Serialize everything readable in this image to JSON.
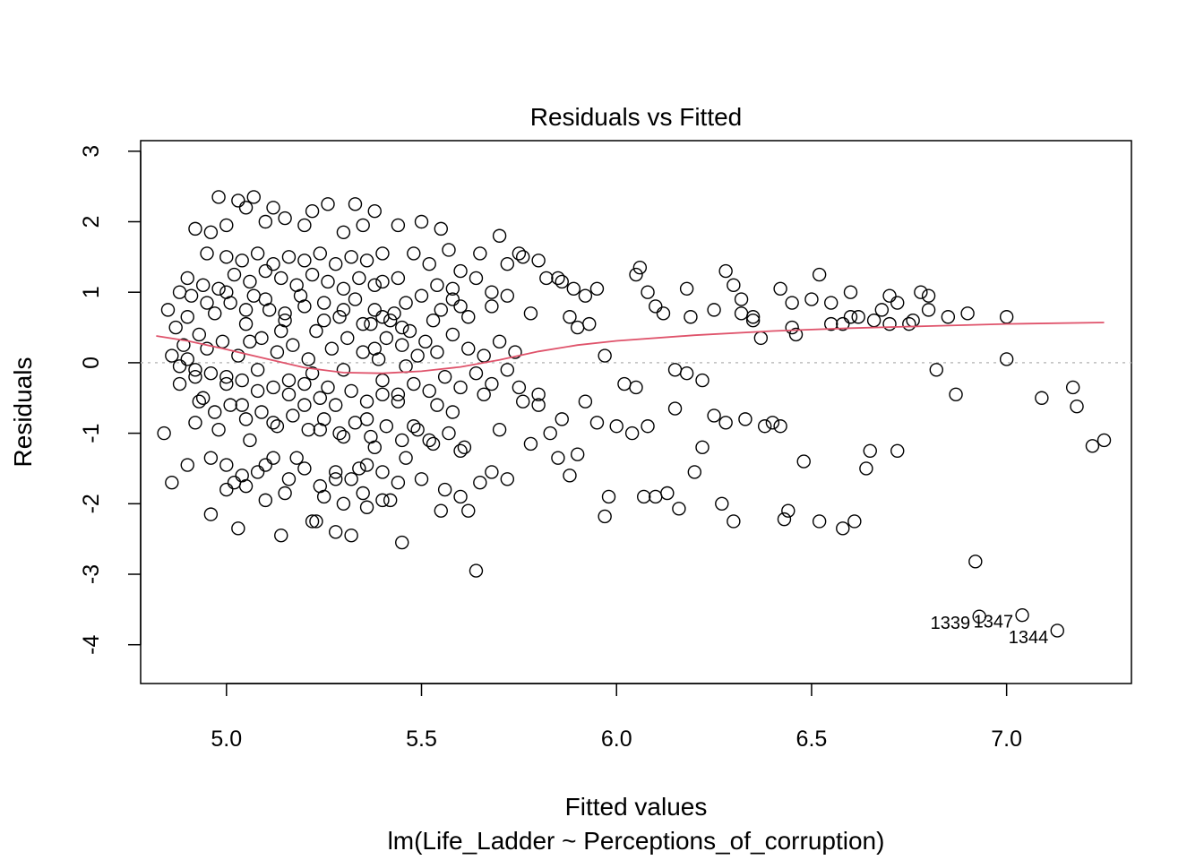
{
  "chart_data": {
    "type": "scatter",
    "title": "Residuals vs Fitted",
    "xlabel": "Fitted values",
    "ylabel": "Residuals",
    "subtitle": "lm(Life_Ladder ~ Perceptions_of_corruption)",
    "xlim": [
      4.78,
      7.32
    ],
    "ylim": [
      -4.55,
      3.15
    ],
    "x_ticks": [
      5.0,
      5.5,
      6.0,
      6.5,
      7.0
    ],
    "x_tick_labels": [
      "5.0",
      "5.5",
      "6.0",
      "6.5",
      "7.0"
    ],
    "y_ticks": [
      3,
      2,
      1,
      0,
      -1,
      -2,
      -3,
      -4
    ],
    "y_tick_labels": [
      "3",
      "2",
      "1",
      "0",
      "-1",
      "-2",
      "-3",
      "-4"
    ],
    "reference_line": {
      "y": 0,
      "style": "dotted",
      "color": "#bebebe"
    },
    "smoother": {
      "color": "#df536b",
      "x": [
        4.82,
        4.9,
        5.0,
        5.1,
        5.2,
        5.3,
        5.4,
        5.5,
        5.6,
        5.7,
        5.8,
        5.9,
        6.0,
        6.2,
        6.4,
        6.6,
        6.8,
        7.0,
        7.25
      ],
      "y": [
        0.38,
        0.31,
        0.19,
        0.06,
        -0.07,
        -0.14,
        -0.15,
        -0.12,
        -0.06,
        0.04,
        0.16,
        0.25,
        0.31,
        0.39,
        0.45,
        0.49,
        0.52,
        0.55,
        0.57
      ]
    },
    "labeled_points": [
      {
        "label": "1339",
        "x": 6.93,
        "y": -3.6
      },
      {
        "label": "1347",
        "x": 7.04,
        "y": -3.58
      },
      {
        "label": "1344",
        "x": 7.13,
        "y": -3.8
      }
    ],
    "points": [
      [
        6.04,
        -1.0
      ],
      [
        6.06,
        1.35
      ],
      [
        6.08,
        1.0
      ],
      [
        6.12,
        0.7
      ],
      [
        6.15,
        -0.1
      ],
      [
        6.18,
        1.05
      ],
      [
        6.22,
        -0.25
      ],
      [
        6.25,
        0.75
      ],
      [
        6.28,
        1.3
      ],
      [
        6.3,
        1.1
      ],
      [
        6.32,
        0.9
      ],
      [
        6.35,
        0.6
      ],
      [
        6.38,
        -0.9
      ],
      [
        6.42,
        1.05
      ],
      [
        6.45,
        0.5
      ],
      [
        6.48,
        -1.4
      ],
      [
        6.5,
        0.9
      ],
      [
        6.52,
        1.25
      ],
      [
        6.55,
        0.85
      ],
      [
        6.58,
        0.55
      ],
      [
        6.6,
        1.0
      ],
      [
        6.62,
        0.65
      ],
      [
        6.65,
        -1.25
      ],
      [
        6.68,
        0.75
      ],
      [
        6.7,
        0.95
      ],
      [
        6.72,
        -1.25
      ],
      [
        6.75,
        0.55
      ],
      [
        6.78,
        1.0
      ],
      [
        6.8,
        0.75
      ],
      [
        6.82,
        -0.1
      ],
      [
        6.85,
        0.65
      ],
      [
        6.87,
        -0.45
      ],
      [
        6.9,
        0.7
      ],
      [
        6.92,
        -2.82
      ],
      [
        7.0,
        0.65
      ],
      [
        7.0,
        0.05
      ],
      [
        7.09,
        -0.5
      ],
      [
        7.17,
        -0.35
      ],
      [
        7.18,
        -0.62
      ],
      [
        7.22,
        -1.18
      ],
      [
        7.25,
        -1.1
      ],
      [
        6.0,
        -0.9
      ],
      [
        5.98,
        -1.9
      ],
      [
        5.97,
        -2.18
      ],
      [
        6.02,
        -0.3
      ],
      [
        6.05,
        -0.35
      ],
      [
        6.07,
        -1.9
      ],
      [
        6.1,
        -1.9
      ],
      [
        6.13,
        -1.85
      ],
      [
        6.16,
        -2.07
      ],
      [
        6.2,
        -1.55
      ],
      [
        6.22,
        -1.2
      ],
      [
        6.27,
        -2.0
      ],
      [
        6.3,
        -2.25
      ],
      [
        6.33,
        -0.8
      ],
      [
        6.4,
        -0.85
      ],
      [
        6.43,
        -2.22
      ],
      [
        6.44,
        -2.1
      ],
      [
        6.52,
        -2.25
      ],
      [
        6.58,
        -2.35
      ],
      [
        6.61,
        -2.25
      ],
      [
        6.64,
        -1.5
      ],
      [
        6.42,
        -0.9
      ],
      [
        6.28,
        -0.85
      ],
      [
        6.25,
        -0.75
      ],
      [
        6.15,
        -0.65
      ],
      [
        6.08,
        -0.9
      ],
      [
        6.19,
        0.65
      ],
      [
        6.32,
        0.7
      ],
      [
        6.37,
        0.35
      ],
      [
        6.46,
        0.4
      ],
      [
        6.55,
        0.55
      ],
      [
        6.66,
        0.6
      ],
      [
        6.7,
        0.55
      ],
      [
        6.76,
        0.6
      ],
      [
        5.95,
        1.05
      ],
      [
        5.93,
        0.55
      ],
      [
        5.9,
        0.5
      ],
      [
        5.88,
        0.65
      ],
      [
        5.85,
        1.2
      ],
      [
        5.82,
        1.2
      ],
      [
        5.78,
        0.7
      ],
      [
        5.75,
        1.55
      ],
      [
        5.72,
        1.4
      ],
      [
        5.7,
        1.8
      ],
      [
        5.68,
        0.8
      ],
      [
        5.65,
        1.55
      ],
      [
        5.62,
        0.65
      ],
      [
        5.6,
        1.3
      ],
      [
        5.58,
        0.9
      ],
      [
        5.57,
        1.6
      ],
      [
        5.55,
        0.75
      ],
      [
        5.52,
        1.4
      ],
      [
        5.5,
        0.95
      ],
      [
        5.48,
        1.55
      ],
      [
        5.46,
        0.85
      ],
      [
        5.44,
        1.2
      ],
      [
        5.42,
        0.6
      ],
      [
        5.4,
        1.15
      ],
      [
        5.38,
        0.75
      ],
      [
        5.95,
        -0.85
      ],
      [
        5.92,
        -0.55
      ],
      [
        5.9,
        -1.3
      ],
      [
        5.88,
        -1.6
      ],
      [
        5.85,
        -1.35
      ],
      [
        5.83,
        -1.0
      ],
      [
        5.8,
        -0.6
      ],
      [
        5.78,
        -1.15
      ],
      [
        5.75,
        -0.35
      ],
      [
        5.72,
        -1.65
      ],
      [
        5.7,
        -0.95
      ],
      [
        5.68,
        -1.55
      ],
      [
        5.66,
        -0.45
      ],
      [
        5.64,
        -2.95
      ],
      [
        5.62,
        -2.1
      ],
      [
        5.6,
        -1.25
      ],
      [
        5.58,
        -0.7
      ],
      [
        5.56,
        -1.8
      ],
      [
        5.54,
        -0.6
      ],
      [
        5.52,
        -1.1
      ],
      [
        5.5,
        -1.65
      ],
      [
        5.48,
        -0.9
      ],
      [
        5.46,
        -1.35
      ],
      [
        5.44,
        -0.55
      ],
      [
        5.42,
        -1.95
      ],
      [
        5.45,
        -2.55
      ],
      [
        5.4,
        -0.45
      ],
      [
        5.38,
        -1.2
      ],
      [
        5.36,
        -0.8
      ],
      [
        5.34,
        -1.5
      ],
      [
        5.32,
        -2.45
      ],
      [
        5.3,
        -1.05
      ],
      [
        5.28,
        -1.65
      ],
      [
        5.26,
        -0.35
      ],
      [
        5.24,
        -0.95
      ],
      [
        5.22,
        -2.25
      ],
      [
        5.2,
        -0.6
      ],
      [
        5.18,
        -1.35
      ],
      [
        5.16,
        -0.25
      ],
      [
        5.14,
        -2.45
      ],
      [
        5.12,
        -0.85
      ],
      [
        5.1,
        -1.45
      ],
      [
        5.08,
        -0.4
      ],
      [
        5.06,
        -1.1
      ],
      [
        5.04,
        -0.6
      ],
      [
        5.02,
        -1.7
      ],
      [
        5.0,
        -0.2
      ],
      [
        4.98,
        -0.95
      ],
      [
        4.96,
        -1.35
      ],
      [
        4.94,
        -0.5
      ],
      [
        4.92,
        -0.85
      ],
      [
        4.9,
        -1.45
      ],
      [
        4.88,
        -0.3
      ],
      [
        4.86,
        -1.7
      ],
      [
        4.84,
        -1.0
      ],
      [
        4.85,
        0.75
      ],
      [
        4.87,
        0.5
      ],
      [
        4.89,
        0.25
      ],
      [
        4.91,
        0.95
      ],
      [
        4.93,
        0.4
      ],
      [
        4.95,
        0.2
      ],
      [
        4.97,
        0.7
      ],
      [
        4.99,
        0.3
      ],
      [
        5.01,
        0.85
      ],
      [
        5.03,
        0.1
      ],
      [
        5.05,
        0.55
      ],
      [
        5.07,
        0.95
      ],
      [
        5.09,
        0.35
      ],
      [
        5.11,
        0.75
      ],
      [
        5.13,
        0.15
      ],
      [
        5.15,
        0.6
      ],
      [
        5.17,
        0.25
      ],
      [
        5.19,
        0.95
      ],
      [
        5.21,
        0.05
      ],
      [
        5.23,
        0.45
      ],
      [
        5.25,
        0.85
      ],
      [
        5.27,
        0.2
      ],
      [
        5.29,
        0.65
      ],
      [
        5.31,
        0.35
      ],
      [
        5.33,
        0.9
      ],
      [
        5.35,
        0.15
      ],
      [
        5.37,
        0.55
      ],
      [
        5.39,
        0.05
      ],
      [
        5.41,
        0.35
      ],
      [
        5.43,
        0.7
      ],
      [
        5.45,
        0.25
      ],
      [
        5.47,
        0.45
      ],
      [
        5.49,
        0.1
      ],
      [
        5.51,
        0.3
      ],
      [
        5.53,
        0.6
      ],
      [
        4.98,
        2.35
      ],
      [
        5.03,
        2.3
      ],
      [
        5.07,
        2.35
      ],
      [
        5.05,
        2.2
      ],
      [
        5.12,
        2.2
      ],
      [
        5.22,
        2.15
      ],
      [
        5.26,
        2.25
      ],
      [
        5.33,
        2.25
      ],
      [
        5.38,
        2.15
      ],
      [
        5.5,
        2.0
      ],
      [
        5.55,
        1.9
      ],
      [
        5.44,
        1.95
      ],
      [
        5.35,
        1.95
      ],
      [
        5.3,
        1.85
      ],
      [
        5.2,
        1.95
      ],
      [
        5.15,
        2.05
      ],
      [
        5.1,
        2.0
      ],
      [
        5.0,
        1.95
      ],
      [
        4.96,
        1.85
      ],
      [
        4.92,
        1.9
      ],
      [
        4.95,
        1.55
      ],
      [
        5.0,
        1.5
      ],
      [
        5.04,
        1.45
      ],
      [
        5.08,
        1.55
      ],
      [
        5.12,
        1.4
      ],
      [
        5.16,
        1.5
      ],
      [
        5.2,
        1.45
      ],
      [
        5.24,
        1.55
      ],
      [
        5.28,
        1.4
      ],
      [
        5.32,
        1.5
      ],
      [
        5.36,
        1.45
      ],
      [
        5.4,
        1.55
      ],
      [
        5.02,
        1.25
      ],
      [
        5.06,
        1.15
      ],
      [
        5.1,
        1.3
      ],
      [
        5.14,
        1.2
      ],
      [
        5.18,
        1.1
      ],
      [
        5.22,
        1.25
      ],
      [
        5.26,
        1.15
      ],
      [
        5.3,
        1.05
      ],
      [
        5.34,
        1.2
      ],
      [
        5.38,
        1.1
      ],
      [
        4.9,
        1.2
      ],
      [
        4.94,
        1.1
      ],
      [
        4.88,
        1.0
      ],
      [
        4.98,
        1.05
      ],
      [
        5.0,
        -1.45
      ],
      [
        5.04,
        -1.6
      ],
      [
        5.08,
        -1.55
      ],
      [
        5.12,
        -1.35
      ],
      [
        5.16,
        -1.65
      ],
      [
        5.2,
        -1.5
      ],
      [
        5.24,
        -1.75
      ],
      [
        5.28,
        -1.55
      ],
      [
        5.32,
        -1.65
      ],
      [
        5.36,
        -1.45
      ],
      [
        5.4,
        -1.55
      ],
      [
        5.44,
        -1.7
      ],
      [
        5.0,
        -1.8
      ],
      [
        5.05,
        -1.75
      ],
      [
        5.1,
        -1.95
      ],
      [
        5.15,
        -1.85
      ],
      [
        5.25,
        -1.9
      ],
      [
        5.3,
        -2.0
      ],
      [
        5.35,
        -1.85
      ],
      [
        5.4,
        -1.95
      ],
      [
        4.96,
        -2.15
      ],
      [
        5.03,
        -2.35
      ],
      [
        5.23,
        -2.25
      ],
      [
        5.28,
        -2.4
      ],
      [
        5.36,
        -2.05
      ],
      [
        5.55,
        -2.1
      ],
      [
        5.6,
        -1.9
      ],
      [
        5.65,
        -1.7
      ],
      [
        4.92,
        -0.1
      ],
      [
        4.96,
        -0.15
      ],
      [
        5.0,
        -0.3
      ],
      [
        5.04,
        -0.25
      ],
      [
        5.08,
        -0.1
      ],
      [
        5.12,
        -0.35
      ],
      [
        5.16,
        -0.45
      ],
      [
        5.2,
        -0.3
      ],
      [
        5.24,
        -0.5
      ],
      [
        5.28,
        -0.6
      ],
      [
        5.32,
        -0.4
      ],
      [
        5.36,
        -0.55
      ],
      [
        5.4,
        -0.25
      ],
      [
        5.44,
        -0.45
      ],
      [
        5.48,
        -0.3
      ],
      [
        5.52,
        -0.4
      ],
      [
        5.56,
        -0.2
      ],
      [
        5.6,
        -0.35
      ],
      [
        5.64,
        -0.15
      ],
      [
        5.68,
        -0.3
      ],
      [
        5.72,
        -0.1
      ],
      [
        5.76,
        -0.55
      ],
      [
        5.8,
        -0.45
      ],
      [
        5.86,
        -0.8
      ],
      [
        5.62,
        0.2
      ],
      [
        5.66,
        0.1
      ],
      [
        5.7,
        0.3
      ],
      [
        5.74,
        0.15
      ],
      [
        5.58,
        0.4
      ],
      [
        5.54,
        0.15
      ],
      [
        4.9,
        0.65
      ],
      [
        4.95,
        0.85
      ],
      [
        5.0,
        1.0
      ],
      [
        5.05,
        0.75
      ],
      [
        5.1,
        0.9
      ],
      [
        5.15,
        0.7
      ],
      [
        5.2,
        0.8
      ],
      [
        5.25,
        0.6
      ],
      [
        5.3,
        0.75
      ],
      [
        5.35,
        0.55
      ],
      [
        5.4,
        0.65
      ],
      [
        5.45,
        0.5
      ],
      [
        4.93,
        -0.55
      ],
      [
        4.97,
        -0.7
      ],
      [
        5.01,
        -0.6
      ],
      [
        5.05,
        -0.8
      ],
      [
        5.09,
        -0.7
      ],
      [
        5.13,
        -0.9
      ],
      [
        5.17,
        -0.75
      ],
      [
        5.21,
        -0.95
      ],
      [
        5.25,
        -0.8
      ],
      [
        5.29,
        -1.0
      ],
      [
        5.33,
        -0.85
      ],
      [
        5.37,
        -1.05
      ],
      [
        5.41,
        -0.9
      ],
      [
        5.45,
        -1.1
      ],
      [
        5.49,
        -0.95
      ],
      [
        5.53,
        -1.15
      ],
      [
        5.57,
        -1.0
      ],
      [
        5.61,
        -1.2
      ],
      [
        4.86,
        0.1
      ],
      [
        4.88,
        -0.05
      ],
      [
        4.9,
        0.05
      ],
      [
        4.92,
        -0.2
      ],
      [
        5.06,
        0.3
      ],
      [
        5.14,
        0.45
      ],
      [
        5.22,
        -0.15
      ],
      [
        5.3,
        -0.1
      ],
      [
        5.38,
        0.2
      ],
      [
        5.46,
        -0.05
      ],
      [
        5.54,
        1.1
      ],
      [
        5.58,
        1.05
      ],
      [
        5.6,
        0.8
      ],
      [
        5.64,
        1.2
      ],
      [
        5.68,
        1.0
      ],
      [
        5.72,
        0.95
      ],
      [
        5.76,
        1.5
      ],
      [
        5.8,
        1.45
      ],
      [
        5.86,
        1.15
      ],
      [
        5.89,
        1.05
      ],
      [
        5.92,
        0.95
      ],
      [
        5.97,
        0.1
      ],
      [
        6.05,
        1.25
      ],
      [
        6.1,
        0.8
      ],
      [
        6.18,
        -0.15
      ],
      [
        6.35,
        0.65
      ],
      [
        6.45,
        0.85
      ],
      [
        6.6,
        0.65
      ],
      [
        6.72,
        0.85
      ],
      [
        6.8,
        0.95
      ]
    ]
  }
}
